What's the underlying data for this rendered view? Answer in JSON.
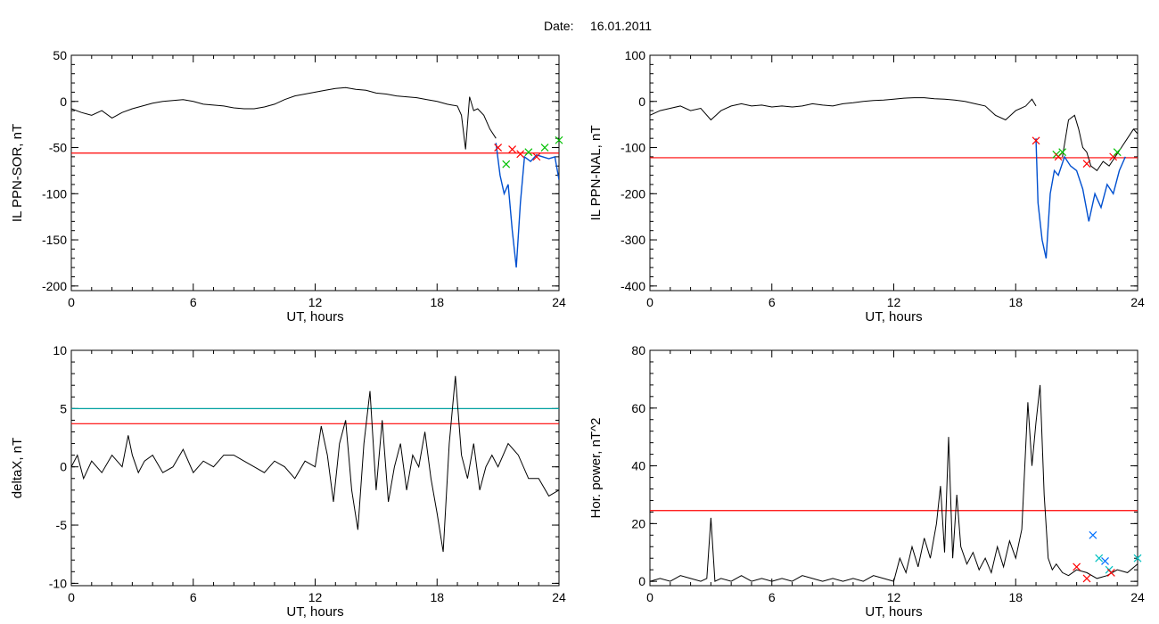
{
  "header": {
    "date_label": "Date:",
    "date_value": "16.01.2011"
  },
  "colors": {
    "trace": "#000000",
    "threshold": "#ff0000",
    "threshold2": "#00a0a0",
    "highlight": "#0050d0",
    "marker_red": "#ff0000",
    "marker_green": "#00c000",
    "marker_blue": "#0070ff",
    "marker_cyan": "#00c0c0"
  },
  "chart_data": [
    {
      "type": "line",
      "xlabel": "UT, hours",
      "ylabel": "IL PPN-SOR, nT",
      "xlim": [
        0,
        24
      ],
      "ylim": [
        -205,
        50
      ],
      "xticks": [
        0,
        6,
        12,
        18,
        24
      ],
      "yticks": [
        50,
        0,
        -50,
        -100,
        -150,
        -200
      ],
      "threshold": -56,
      "series": [
        {
          "role": "trace",
          "x": [
            0,
            0.5,
            1,
            1.5,
            2,
            2.5,
            3,
            3.5,
            4,
            4.5,
            5,
            5.5,
            6,
            6.5,
            7,
            7.5,
            8,
            8.5,
            9,
            9.5,
            10,
            10.5,
            11,
            11.5,
            12,
            12.5,
            13,
            13.5,
            14,
            14.5,
            15,
            15.5,
            16,
            16.5,
            17,
            17.5,
            18,
            18.5,
            19,
            19.2,
            19.4,
            19.6,
            19.8,
            20,
            20.3,
            20.6,
            20.9
          ],
          "y": [
            -8,
            -12,
            -15,
            -10,
            -18,
            -12,
            -8,
            -5,
            -2,
            0,
            1,
            2,
            0,
            -3,
            -4,
            -5,
            -7,
            -8,
            -8,
            -6,
            -3,
            2,
            6,
            8,
            10,
            12,
            14,
            15,
            13,
            12,
            9,
            8,
            6,
            5,
            4,
            2,
            0,
            -3,
            -5,
            -15,
            -52,
            5,
            -10,
            -8,
            -15,
            -30,
            -40
          ]
        },
        {
          "role": "highlight",
          "x": [
            20.9,
            21.1,
            21.3,
            21.5,
            21.7,
            21.9,
            22.1,
            22.3,
            22.6,
            22.9,
            23.2,
            23.5,
            23.8,
            24
          ],
          "y": [
            -45,
            -80,
            -100,
            -90,
            -140,
            -180,
            -110,
            -60,
            -65,
            -58,
            -60,
            -62,
            -60,
            -85
          ]
        }
      ],
      "markers": [
        {
          "x": 21.0,
          "y": -50,
          "color": "red"
        },
        {
          "x": 21.4,
          "y": -68,
          "color": "green"
        },
        {
          "x": 21.7,
          "y": -52,
          "color": "red"
        },
        {
          "x": 22.1,
          "y": -57,
          "color": "red"
        },
        {
          "x": 22.5,
          "y": -55,
          "color": "green"
        },
        {
          "x": 22.9,
          "y": -60,
          "color": "red"
        },
        {
          "x": 23.3,
          "y": -50,
          "color": "green"
        },
        {
          "x": 24.0,
          "y": -42,
          "color": "green"
        }
      ]
    },
    {
      "type": "line",
      "xlabel": "UT, hours",
      "ylabel": "IL PPN-NAL, nT",
      "xlim": [
        0,
        24
      ],
      "ylim": [
        -410,
        100
      ],
      "xticks": [
        0,
        6,
        12,
        18,
        24
      ],
      "yticks": [
        100,
        0,
        -100,
        -200,
        -300,
        -400
      ],
      "threshold": -122,
      "series": [
        {
          "role": "trace",
          "x": [
            0,
            0.5,
            1,
            1.5,
            2,
            2.5,
            3,
            3.5,
            4,
            4.5,
            5,
            5.5,
            6,
            6.5,
            7,
            7.5,
            8,
            8.5,
            9,
            9.5,
            10,
            10.5,
            11,
            11.5,
            12,
            12.5,
            13,
            13.5,
            14,
            14.5,
            15,
            15.5,
            16,
            16.5,
            17,
            17.5,
            18,
            18.5,
            18.8,
            19.0
          ],
          "y": [
            -30,
            -20,
            -15,
            -10,
            -20,
            -15,
            -40,
            -20,
            -10,
            -5,
            -10,
            -8,
            -12,
            -10,
            -12,
            -10,
            -5,
            -8,
            -10,
            -5,
            -3,
            0,
            2,
            3,
            5,
            7,
            8,
            8,
            6,
            5,
            3,
            0,
            -5,
            -10,
            -30,
            -40,
            -20,
            -10,
            5,
            -10
          ]
        },
        {
          "role": "highlight",
          "x": [
            19.0,
            19.1,
            19.3,
            19.5,
            19.7,
            19.9,
            20.1,
            20.4,
            20.7,
            21.0,
            21.3,
            21.6,
            21.9,
            22.2,
            22.5,
            22.8,
            23.1,
            23.4
          ],
          "y": [
            -80,
            -220,
            -300,
            -340,
            -200,
            -150,
            -160,
            -120,
            -140,
            -150,
            -190,
            -260,
            -200,
            -230,
            -180,
            -200,
            -150,
            -120
          ]
        },
        {
          "role": "trace",
          "x": [
            20.3,
            20.6,
            20.9,
            21.1,
            21.3,
            21.5,
            21.7,
            22.0,
            22.3,
            22.6,
            22.9,
            23.2,
            23.5,
            23.8,
            24
          ],
          "y": [
            -120,
            -40,
            -30,
            -60,
            -100,
            -110,
            -140,
            -150,
            -130,
            -140,
            -120,
            -100,
            -80,
            -60,
            -70
          ]
        }
      ],
      "markers": [
        {
          "x": 19.0,
          "y": -85,
          "color": "red"
        },
        {
          "x": 20.0,
          "y": -115,
          "color": "green"
        },
        {
          "x": 20.1,
          "y": -120,
          "color": "red"
        },
        {
          "x": 20.3,
          "y": -110,
          "color": "green"
        },
        {
          "x": 21.5,
          "y": -135,
          "color": "red"
        },
        {
          "x": 22.8,
          "y": -120,
          "color": "red"
        },
        {
          "x": 23.0,
          "y": -110,
          "color": "green"
        }
      ]
    },
    {
      "type": "line",
      "xlabel": "UT, hours",
      "ylabel": "deltaX, nT",
      "xlim": [
        0,
        24
      ],
      "ylim": [
        -10.2,
        10
      ],
      "xticks": [
        0,
        6,
        12,
        18,
        24
      ],
      "yticks": [
        10,
        5,
        0,
        -5,
        -10
      ],
      "threshold": 3.7,
      "threshold2": 5.0,
      "series": [
        {
          "role": "trace",
          "x": [
            0,
            0.3,
            0.6,
            1,
            1.5,
            2,
            2.5,
            2.8,
            3,
            3.3,
            3.6,
            4,
            4.5,
            5,
            5.5,
            6,
            6.5,
            7,
            7.5,
            8,
            8.5,
            9,
            9.5,
            10,
            10.5,
            11,
            11.5,
            12,
            12.3,
            12.6,
            12.9,
            13.2,
            13.5,
            13.8,
            14.1,
            14.4,
            14.7,
            15.0,
            15.3,
            15.6,
            15.9,
            16.2,
            16.5,
            16.8,
            17.1,
            17.4,
            17.7,
            18.0,
            18.3,
            18.6,
            18.9,
            19.2,
            19.5,
            19.8,
            20.1,
            20.4,
            20.7,
            21.0,
            21.5,
            22,
            22.5,
            23,
            23.5,
            24
          ],
          "y": [
            0,
            1,
            -1,
            0.5,
            -0.5,
            1,
            0,
            2.7,
            1,
            -0.5,
            0.5,
            1,
            -0.5,
            0,
            1.5,
            -0.5,
            0.5,
            0,
            1,
            1,
            0.5,
            0,
            -0.5,
            0.5,
            0,
            -1,
            0.5,
            0,
            3.5,
            1,
            -3,
            2,
            4,
            -2,
            -5.4,
            2,
            6.5,
            -2,
            4,
            -3,
            0,
            2,
            -2,
            1,
            0,
            3,
            -1,
            -4,
            -7.3,
            2,
            7.8,
            1,
            -1,
            2,
            -2,
            0,
            1,
            0,
            2,
            1,
            -1,
            -1,
            -2.5,
            -2
          ]
        }
      ],
      "markers": []
    },
    {
      "type": "line",
      "xlabel": "UT, hours",
      "ylabel": "Hor. power, nT^2",
      "xlim": [
        0,
        24
      ],
      "ylim": [
        -1.5,
        80
      ],
      "xticks": [
        0,
        6,
        12,
        18,
        24
      ],
      "yticks": [
        80,
        60,
        40,
        20,
        0
      ],
      "threshold": 24.5,
      "series": [
        {
          "role": "trace",
          "x": [
            0,
            0.5,
            1,
            1.5,
            2,
            2.5,
            2.8,
            3.0,
            3.2,
            3.5,
            4,
            4.5,
            5,
            5.5,
            6,
            6.5,
            7,
            7.5,
            8,
            8.5,
            9,
            9.5,
            10,
            10.5,
            11,
            11.5,
            12,
            12.3,
            12.6,
            12.9,
            13.2,
            13.5,
            13.8,
            14.1,
            14.3,
            14.5,
            14.7,
            14.9,
            15.1,
            15.3,
            15.6,
            15.9,
            16.2,
            16.5,
            16.8,
            17.1,
            17.4,
            17.7,
            18.0,
            18.3,
            18.6,
            18.8,
            19.0,
            19.2,
            19.4,
            19.6,
            19.8,
            20.0,
            20.3,
            20.6,
            21.0,
            21.5,
            22,
            22.5,
            23,
            23.5,
            24
          ],
          "y": [
            0,
            1,
            0,
            2,
            1,
            0,
            1,
            22,
            0,
            1,
            0,
            2,
            0,
            1,
            0,
            1,
            0,
            2,
            1,
            0,
            1,
            0,
            1,
            0,
            2,
            1,
            0,
            8,
            3,
            12,
            5,
            15,
            8,
            20,
            33,
            10,
            50,
            8,
            30,
            12,
            6,
            10,
            4,
            8,
            3,
            12,
            5,
            14,
            8,
            18,
            62,
            40,
            55,
            68,
            30,
            8,
            4,
            6,
            3,
            2,
            4,
            3,
            1,
            2,
            4,
            3,
            6
          ]
        }
      ],
      "markers": [
        {
          "x": 21.0,
          "y": 5,
          "color": "red"
        },
        {
          "x": 21.5,
          "y": 1,
          "color": "red"
        },
        {
          "x": 21.8,
          "y": 16,
          "color": "blue"
        },
        {
          "x": 22.1,
          "y": 8,
          "color": "cyan"
        },
        {
          "x": 22.4,
          "y": 7,
          "color": "blue"
        },
        {
          "x": 22.6,
          "y": 4,
          "color": "cyan"
        },
        {
          "x": 22.7,
          "y": 3,
          "color": "red"
        },
        {
          "x": 24.0,
          "y": 8,
          "color": "cyan"
        }
      ]
    }
  ]
}
